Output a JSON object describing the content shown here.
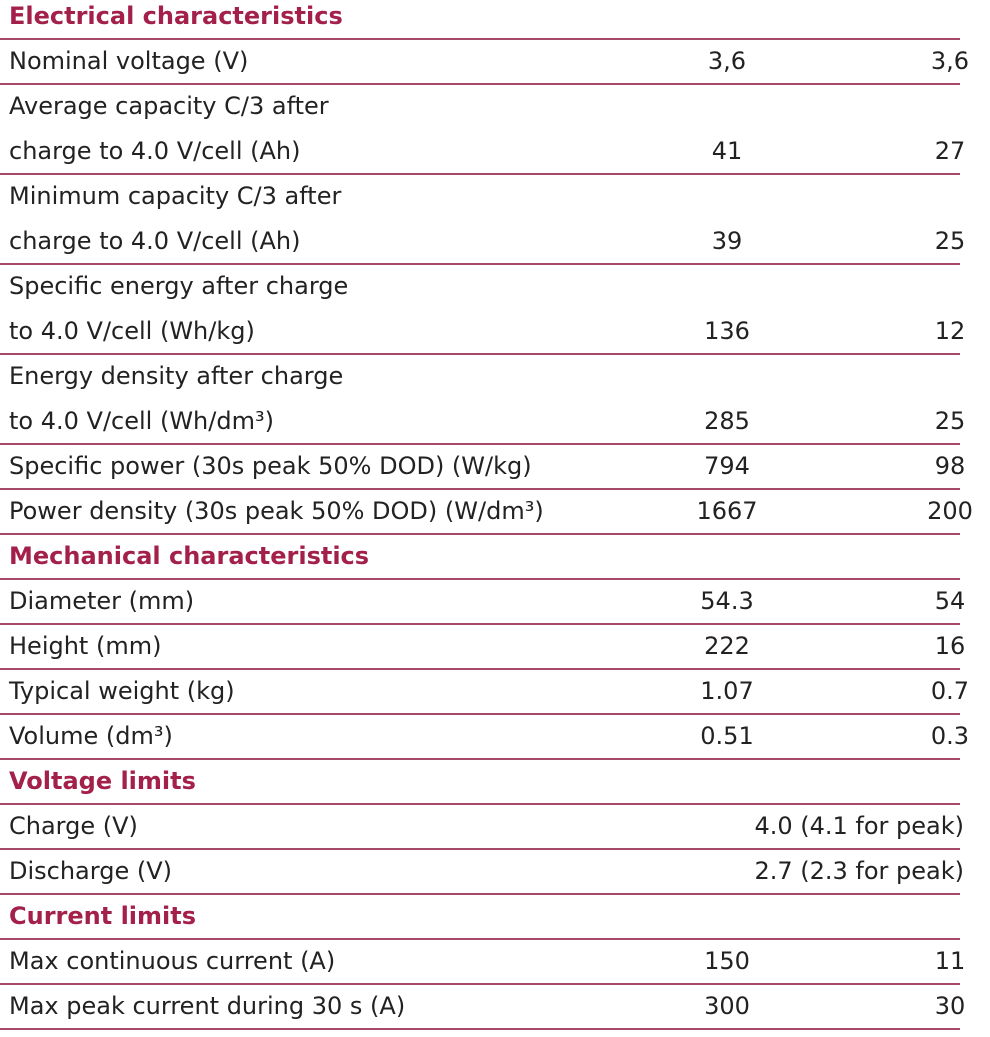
{
  "sections": [
    {
      "title": "Electrical characteristics",
      "rows": [
        {
          "label": [
            "Nominal voltage (V)"
          ],
          "values": [
            "3,6",
            "3,6"
          ]
        },
        {
          "label": [
            "Average capacity C/3 after",
            "charge to 4.0 V/cell (Ah)"
          ],
          "values": [
            "41",
            "27"
          ]
        },
        {
          "label": [
            "Minimum capacity C/3 after",
            "charge to 4.0 V/cell (Ah)"
          ],
          "values": [
            "39",
            "25"
          ]
        },
        {
          "label": [
            "Specific energy after charge",
            "to 4.0 V/cell (Wh/kg)"
          ],
          "values": [
            "136",
            "12"
          ]
        },
        {
          "label": [
            "Energy density after charge",
            "to 4.0 V/cell (Wh/dm³)"
          ],
          "values": [
            "285",
            "25"
          ]
        },
        {
          "label": [
            "Specific power (30s peak 50% DOD) (W/kg)"
          ],
          "values": [
            "794",
            "98"
          ]
        },
        {
          "label": [
            "Power density (30s peak 50% DOD) (W/dm³)"
          ],
          "values": [
            "1667",
            "200"
          ]
        }
      ]
    },
    {
      "title": "Mechanical characteristics",
      "rows": [
        {
          "label": [
            "Diameter (mm)"
          ],
          "values": [
            "54.3",
            "54"
          ]
        },
        {
          "label": [
            "Height (mm)"
          ],
          "values": [
            "222",
            "16"
          ]
        },
        {
          "label": [
            "Typical weight (kg)"
          ],
          "values": [
            "1.07",
            "0.7"
          ]
        },
        {
          "label": [
            "Volume (dm³)"
          ],
          "values": [
            "0.51",
            "0.3"
          ]
        }
      ]
    },
    {
      "title": "Voltage limits",
      "rows": [
        {
          "label": [
            "Charge (V)"
          ],
          "merged": "4.0 (4.1 for peak)"
        },
        {
          "label": [
            "Discharge (V)"
          ],
          "merged": "2.7 (2.3 for peak)"
        }
      ]
    },
    {
      "title": "Current limits",
      "rows": [
        {
          "label": [
            "Max continuous current (A)"
          ],
          "values": [
            "150",
            "11"
          ]
        },
        {
          "label": [
            "Max peak current during 30 s (A)"
          ],
          "values": [
            "300",
            "30"
          ]
        }
      ]
    }
  ]
}
